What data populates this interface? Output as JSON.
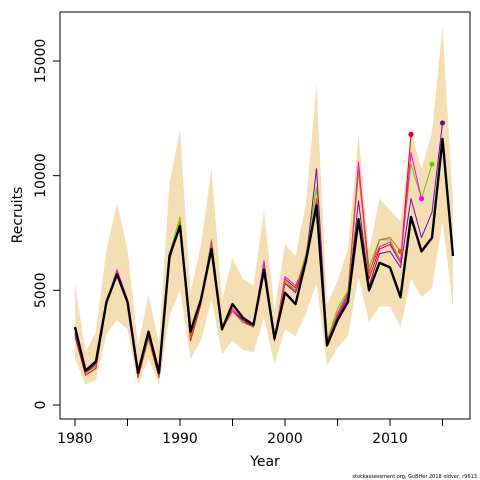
{
  "chart_data": {
    "type": "line",
    "xlabel": "Year",
    "ylabel": "Recruits",
    "footer": "stockassessment.org, GoBHer 2018 oldver, r9613",
    "xlim": [
      1980,
      2016
    ],
    "ylim": [
      0,
      16500
    ],
    "x_ticks": [
      1980,
      1985,
      1990,
      1995,
      2000,
      2005,
      2010,
      2015
    ],
    "x_tick_labels": [
      "1980",
      "1990",
      "2000",
      "2010"
    ],
    "y_ticks": [
      0,
      5000,
      10000,
      15000
    ],
    "y_tick_labels": [
      "0",
      "5000",
      "10000",
      "15000"
    ],
    "grid": false,
    "colors": {
      "ci_band": "#f5deb3",
      "main_line": "#000000",
      "retro_red": "#ee0000",
      "retro_green": "#66cc00",
      "retro_magenta": "#ff00ff",
      "retro_purple": "#8000a0",
      "retro_orange": "#cc6600"
    },
    "ci_band": {
      "x": [
        1980,
        1981,
        1982,
        1983,
        1984,
        1985,
        1986,
        1987,
        1988,
        1989,
        1990,
        1991,
        1992,
        1993,
        1994,
        1995,
        1996,
        1997,
        1998,
        1999,
        2000,
        2001,
        2002,
        2003,
        2004,
        2005,
        2006,
        2007,
        2008,
        2009,
        2010,
        2011,
        2012,
        2013,
        2014,
        2015,
        2016
      ],
      "upper": [
        5300,
        2300,
        3200,
        6800,
        8800,
        6800,
        2600,
        4800,
        2700,
        9700,
        12000,
        4900,
        7000,
        10300,
        4600,
        6400,
        5500,
        5200,
        8500,
        4100,
        7000,
        6500,
        8800,
        14000,
        4400,
        5400,
        6800,
        11800,
        6700,
        9000,
        8500,
        8000,
        11900,
        10300,
        11900,
        16500,
        8800
      ],
      "lower": [
        2000,
        900,
        1100,
        3100,
        3700,
        3300,
        900,
        2000,
        900,
        3900,
        5000,
        2000,
        2800,
        4600,
        2200,
        2800,
        2400,
        2300,
        3800,
        1800,
        3300,
        3000,
        4000,
        5300,
        1700,
        2500,
        3000,
        5600,
        3600,
        4300,
        4300,
        3400,
        5500,
        4700,
        5100,
        8000,
        4300
      ]
    },
    "series": [
      {
        "type": "retrospective",
        "color": "#ee0000",
        "x": [
          1980,
          1981,
          1982,
          1983,
          1984,
          1985,
          1986,
          1987,
          1988,
          1989,
          1990,
          1991,
          1992,
          1993,
          1994,
          1995,
          1996,
          1997,
          1998,
          1999,
          2000,
          2001,
          2002,
          2003,
          2004,
          2005,
          2006,
          2007,
          2008,
          2009,
          2010,
          2011,
          2012
        ],
        "values": [
          3000,
          1300,
          1600,
          4400,
          5700,
          4400,
          1200,
          2900,
          1200,
          6300,
          8000,
          2800,
          4400,
          7200,
          3300,
          4100,
          3600,
          3500,
          6200,
          2800,
          5500,
          5100,
          6400,
          8800,
          2700,
          4000,
          4900,
          10500,
          5500,
          6800,
          7000,
          6200,
          11800
        ]
      },
      {
        "type": "retrospective",
        "color": "#66cc00",
        "x": [
          1980,
          1981,
          1982,
          1983,
          1984,
          1985,
          1986,
          1987,
          1988,
          1989,
          1990,
          1991,
          1992,
          1993,
          1994,
          1995,
          1996,
          1997,
          1998,
          1999,
          2000,
          2001,
          2002,
          2003,
          2004,
          2005,
          2006,
          2007,
          2008,
          2009,
          2010,
          2011,
          2012,
          2013,
          2014
        ],
        "values": [
          3200,
          1400,
          1700,
          4500,
          5800,
          4500,
          1300,
          3000,
          1300,
          6600,
          8200,
          3000,
          4600,
          7200,
          3400,
          4100,
          3700,
          3500,
          6100,
          2900,
          5300,
          5000,
          6600,
          9500,
          2800,
          4200,
          5000,
          10300,
          6000,
          7200,
          7200,
          6300,
          10500,
          9000,
          10500
        ]
      },
      {
        "type": "retrospective",
        "color": "#ff00ff",
        "x": [
          1980,
          1981,
          1982,
          1983,
          1984,
          1985,
          1986,
          1987,
          1988,
          1989,
          1990,
          1991,
          1992,
          1993,
          1994,
          1995,
          1996,
          1997,
          1998,
          1999,
          2000,
          2001,
          2002,
          2003,
          2004,
          2005,
          2006,
          2007,
          2008,
          2009,
          2010,
          2011,
          2012,
          2013
        ],
        "values": [
          3100,
          1400,
          1800,
          4500,
          5900,
          4600,
          1300,
          3000,
          1300,
          6400,
          7900,
          2900,
          4500,
          7100,
          3300,
          4200,
          3700,
          3500,
          6300,
          2900,
          5600,
          5200,
          6200,
          9000,
          2700,
          3900,
          4800,
          10600,
          5800,
          6900,
          7100,
          6200,
          11000,
          9000
        ]
      },
      {
        "type": "retrospective",
        "color": "#8000a0",
        "x": [
          1980,
          1981,
          1982,
          1983,
          1984,
          1985,
          1986,
          1987,
          1988,
          1989,
          1990,
          1991,
          1992,
          1993,
          1994,
          1995,
          1996,
          1997,
          1998,
          1999,
          2000,
          2001,
          2002,
          2003,
          2004,
          2005,
          2006,
          2007,
          2008,
          2009,
          2010,
          2011,
          2012,
          2013,
          2014,
          2015
        ],
        "values": [
          3100,
          1400,
          1800,
          4400,
          5800,
          4500,
          1300,
          2900,
          1300,
          6500,
          7800,
          2900,
          4500,
          6900,
          3300,
          4100,
          3700,
          3400,
          6100,
          2900,
          5300,
          4900,
          6300,
          10300,
          2800,
          3800,
          4700,
          8900,
          5200,
          6600,
          6700,
          6000,
          9000,
          7300,
          8400,
          12300
        ]
      },
      {
        "type": "retrospective",
        "color": "#cc6600",
        "x": [
          1980,
          1981,
          1982,
          1983,
          1984,
          1985,
          1986,
          1987,
          1988,
          1989,
          1990,
          1991,
          1992,
          1993,
          1994,
          1995,
          1996,
          1997,
          1998,
          1999,
          2000,
          2001,
          2002,
          2003,
          2004,
          2005,
          2006,
          2007,
          2008,
          2009,
          2010,
          2011
        ],
        "values": [
          3200,
          1400,
          1700,
          4400,
          5800,
          4500,
          1300,
          2900,
          1300,
          6400,
          8000,
          2900,
          4500,
          7000,
          3300,
          4100,
          3600,
          3400,
          6100,
          2900,
          5400,
          5000,
          6500,
          9000,
          2700,
          4000,
          4900,
          10200,
          5700,
          7200,
          7300,
          6700
        ]
      },
      {
        "type": "estimate",
        "color": "#000000",
        "x": [
          1980,
          1981,
          1982,
          1983,
          1984,
          1985,
          1986,
          1987,
          1988,
          1989,
          1990,
          1991,
          1992,
          1993,
          1994,
          1995,
          1996,
          1997,
          1998,
          1999,
          2000,
          2001,
          2002,
          2003,
          2004,
          2005,
          2006,
          2007,
          2008,
          2009,
          2010,
          2011,
          2012,
          2013,
          2014,
          2015,
          2016
        ],
        "values": [
          3400,
          1500,
          1900,
          4500,
          5700,
          4500,
          1400,
          3200,
          1400,
          6500,
          7800,
          3200,
          4600,
          6800,
          3300,
          4400,
          3800,
          3500,
          5900,
          2900,
          4900,
          4400,
          6300,
          8700,
          2600,
          3700,
          4500,
          8100,
          5000,
          6200,
          6000,
          4700,
          8200,
          6700,
          7300,
          11600,
          6500
        ]
      }
    ],
    "endpoints": [
      {
        "x": 2011,
        "y": 6700,
        "color": "#cc6600"
      },
      {
        "x": 2012,
        "y": 11800,
        "color": "#ee0000"
      },
      {
        "x": 2013,
        "y": 9000,
        "color": "#ff00ff"
      },
      {
        "x": 2014,
        "y": 10500,
        "color": "#66cc00"
      },
      {
        "x": 2015,
        "y": 12300,
        "color": "#8000a0"
      }
    ]
  }
}
